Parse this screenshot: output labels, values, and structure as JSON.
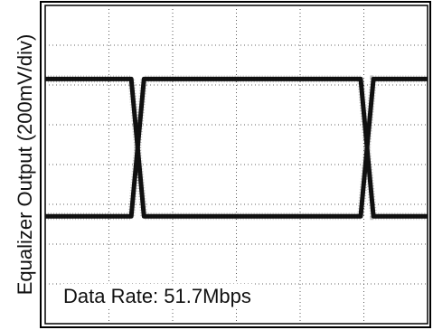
{
  "chart_data": {
    "type": "line",
    "title": "",
    "xlabel": "",
    "ylabel": "Equalizer Output (200mV/div)",
    "annotation": "Data Rate: 51.7Mbps",
    "grid": true,
    "grid_divisions": {
      "x": 6,
      "y": 8
    },
    "ylim_div": [
      -4,
      4
    ],
    "series": [
      {
        "values": [
          2.15,
          2.15,
          2.15,
          -1.3,
          -1.3,
          -1.3,
          -1.3,
          -1.3,
          -1.3,
          2.15,
          2.15,
          2.15
        ],
        "x": [
          0,
          0.95,
          1.35,
          1.55,
          2.0,
          3.0,
          4.0,
          4.6,
          4.95,
          5.15,
          5.5,
          6.0
        ]
      },
      {
        "values": [
          -1.3,
          -1.3,
          -1.3,
          2.15,
          2.15,
          2.15,
          2.15,
          2.15,
          2.15,
          -1.3,
          -1.3,
          -1.3
        ],
        "x": [
          0,
          0.95,
          1.35,
          1.55,
          2.0,
          3.0,
          4.0,
          4.6,
          4.95,
          5.15,
          5.5,
          6.0
        ]
      }
    ],
    "colors": {
      "trace": "#111111",
      "grid": "#333333",
      "frame": "#000000"
    }
  }
}
